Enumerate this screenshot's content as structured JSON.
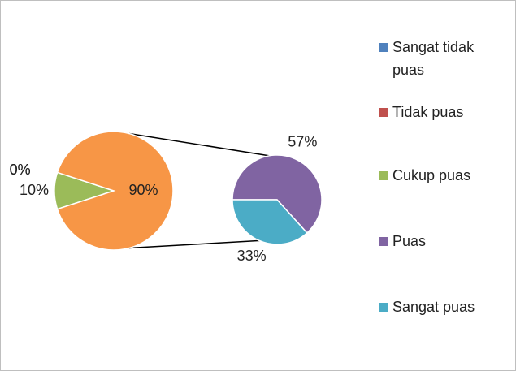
{
  "chart_data": {
    "type": "pie-of-pie",
    "categories": [
      "Sangat tidak puas",
      "Tidak puas",
      "Cukup puas",
      "Puas",
      "Sangat puas"
    ],
    "values": [
      0,
      0,
      10,
      57,
      33
    ],
    "value_labels": [
      "0%",
      "0%",
      "10%",
      "57%",
      "33%"
    ],
    "colors": [
      "#4f81bd",
      "#c0504d",
      "#9bbb59",
      "#8064a2",
      "#4bacc6"
    ],
    "secondary": [
      3,
      4
    ],
    "combined_value": 90,
    "combined_label": "90%",
    "combined_color": "#f79646",
    "legend": "right"
  }
}
